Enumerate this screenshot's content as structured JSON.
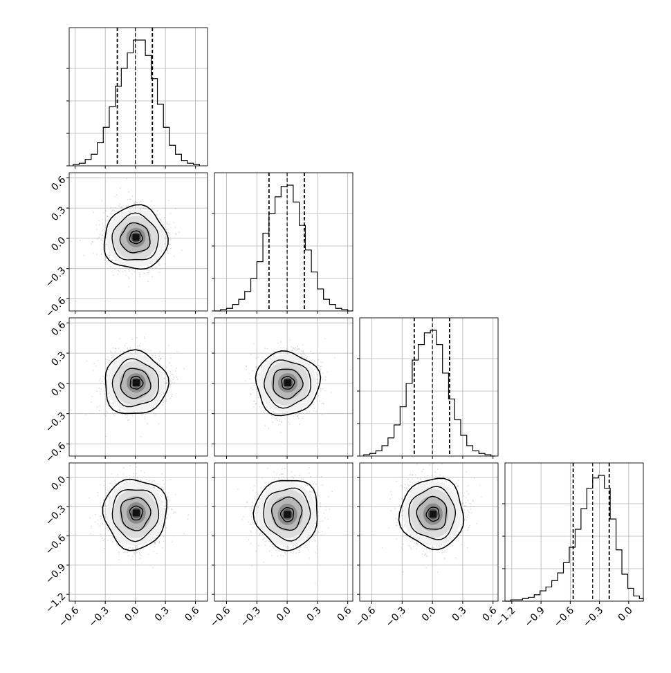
{
  "chart_data": {
    "type": "corner",
    "grid": true,
    "parameters": [
      {
        "ticks": [
          "−0.6",
          "−0.3",
          "0.0",
          "0.3",
          "0.6"
        ],
        "tick_values": [
          -0.6,
          -0.3,
          0.0,
          0.3,
          0.6
        ],
        "range": [
          -0.66,
          0.72
        ],
        "quantiles": [
          -0.18,
          0.0,
          0.17
        ],
        "histogram": {
          "bin_edges": [
            -0.62,
            -0.56,
            -0.5,
            -0.44,
            -0.38,
            -0.32,
            -0.26,
            -0.2,
            -0.14,
            -0.08,
            -0.02,
            0.04,
            0.1,
            0.16,
            0.22,
            0.28,
            0.34,
            0.4,
            0.46,
            0.52,
            0.58,
            0.64
          ],
          "counts": [
            0.01,
            0.02,
            0.05,
            0.09,
            0.18,
            0.3,
            0.46,
            0.62,
            0.76,
            0.88,
            0.98,
            0.98,
            0.86,
            0.68,
            0.48,
            0.3,
            0.16,
            0.09,
            0.04,
            0.02,
            0.01
          ]
        }
      },
      {
        "ticks": [
          "−0.6",
          "−0.3",
          "0.0",
          "0.3",
          "0.6"
        ],
        "tick_values": [
          -0.6,
          -0.3,
          0.0,
          0.3,
          0.6
        ],
        "range": [
          -0.72,
          0.65
        ],
        "quantiles": [
          -0.18,
          0.0,
          0.17
        ],
        "histogram": {
          "bin_edges": [
            -0.72,
            -0.66,
            -0.6,
            -0.54,
            -0.48,
            -0.42,
            -0.36,
            -0.3,
            -0.24,
            -0.18,
            -0.12,
            -0.06,
            0.0,
            0.06,
            0.12,
            0.18,
            0.24,
            0.3,
            0.36,
            0.42,
            0.48,
            0.54,
            0.6,
            0.65
          ],
          "counts": [
            0.0,
            0.01,
            0.02,
            0.05,
            0.09,
            0.15,
            0.25,
            0.38,
            0.6,
            0.75,
            0.88,
            0.96,
            0.97,
            0.84,
            0.66,
            0.47,
            0.3,
            0.17,
            0.09,
            0.05,
            0.02,
            0.01,
            0.0
          ]
        }
      },
      {
        "ticks": [
          "−0.6",
          "−0.3",
          "0.0",
          "0.3",
          "0.6"
        ],
        "tick_values": [
          -0.6,
          -0.3,
          0.0,
          0.3,
          0.6
        ],
        "range": [
          -0.72,
          0.65
        ],
        "quantiles": [
          -0.18,
          0.0,
          0.17
        ],
        "histogram": {
          "bin_edges": [
            -0.68,
            -0.62,
            -0.56,
            -0.5,
            -0.44,
            -0.38,
            -0.32,
            -0.26,
            -0.2,
            -0.14,
            -0.08,
            -0.02,
            0.04,
            0.1,
            0.16,
            0.22,
            0.28,
            0.34,
            0.4,
            0.46,
            0.52,
            0.58,
            0.62
          ],
          "counts": [
            0.01,
            0.02,
            0.04,
            0.08,
            0.14,
            0.24,
            0.38,
            0.56,
            0.74,
            0.86,
            0.95,
            0.97,
            0.86,
            0.64,
            0.44,
            0.28,
            0.16,
            0.08,
            0.04,
            0.02,
            0.01,
            0.0
          ]
        }
      },
      {
        "ticks": [
          "−1.2",
          "−0.9",
          "−0.6",
          "−0.3",
          "0.0"
        ],
        "tick_values": [
          -1.2,
          -0.9,
          -0.6,
          -0.3,
          0.0
        ],
        "range": [
          -1.27,
          0.15
        ],
        "quantiles": [
          -0.57,
          -0.37,
          -0.2
        ],
        "histogram": {
          "bin_edges": [
            -1.27,
            -1.21,
            -1.15,
            -1.09,
            -1.03,
            -0.97,
            -0.91,
            -0.85,
            -0.79,
            -0.73,
            -0.67,
            -0.61,
            -0.55,
            -0.49,
            -0.43,
            -0.37,
            -0.31,
            -0.25,
            -0.19,
            -0.13,
            -0.07,
            -0.01,
            0.05,
            0.11,
            0.15
          ],
          "counts": [
            0.0,
            0.01,
            0.01,
            0.02,
            0.03,
            0.05,
            0.08,
            0.11,
            0.16,
            0.22,
            0.3,
            0.42,
            0.56,
            0.72,
            0.88,
            0.96,
            0.98,
            0.88,
            0.64,
            0.4,
            0.21,
            0.1,
            0.04,
            0.02
          ]
        }
      }
    ],
    "pairs": [
      {
        "row": 1,
        "col": 0,
        "center": [
          0.0,
          0.0
        ],
        "spread": [
          0.14,
          0.14
        ],
        "peak_offset": [
          0.02,
          0.03
        ]
      },
      {
        "row": 2,
        "col": 0,
        "center": [
          0.0,
          0.0
        ],
        "spread": [
          0.14,
          0.14
        ],
        "peak_offset": [
          0.03,
          0.02
        ]
      },
      {
        "row": 2,
        "col": 1,
        "center": [
          0.0,
          0.0
        ],
        "spread": [
          0.14,
          0.14
        ],
        "peak_offset": [
          0.02,
          0.02
        ]
      },
      {
        "row": 3,
        "col": 0,
        "center": [
          0.0,
          -0.37
        ],
        "spread": [
          0.14,
          0.16
        ],
        "peak_offset": [
          0.03,
          0.02
        ]
      },
      {
        "row": 3,
        "col": 1,
        "center": [
          0.0,
          -0.37
        ],
        "spread": [
          0.14,
          0.16
        ],
        "peak_offset": [
          0.01,
          -0.03
        ]
      },
      {
        "row": 3,
        "col": 2,
        "center": [
          0.0,
          -0.37
        ],
        "spread": [
          0.14,
          0.16
        ],
        "peak_offset": [
          0.02,
          -0.02
        ]
      }
    ],
    "colors": {
      "line": "#000000",
      "grid": "#b0b0b0",
      "points": "#9e9e9e"
    }
  }
}
